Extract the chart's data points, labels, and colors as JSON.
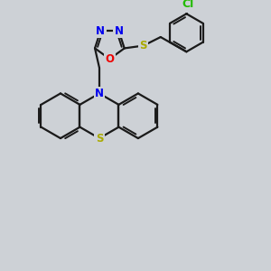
{
  "background_color": "#cdd1d6",
  "line_color": "#1a1a1a",
  "line_width": 1.6,
  "atom_colors": {
    "N": "#0000ee",
    "O": "#ee0000",
    "S": "#aaaa00",
    "Cl": "#22bb00",
    "C": "#1a1a1a"
  },
  "font_size": 8.5,
  "figsize": [
    3.0,
    3.0
  ],
  "dpi": 100
}
